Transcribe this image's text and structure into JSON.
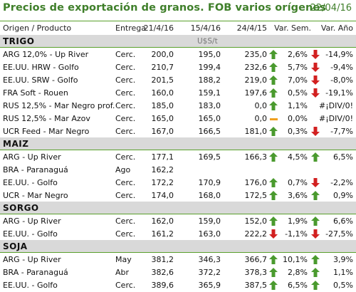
{
  "title": "Precios de exportación de granos. FOB varios orígenes",
  "date": "22/04/16",
  "headers": [
    "Origen / Producto",
    "Entrega",
    "21/4/16",
    "15/4/16",
    "24/4/15",
    "Var. Sem.",
    "Var. Año"
  ],
  "unit": "U$S/t",
  "colors": {
    "accent": "#3f7f2a",
    "up": "#4a9a2e",
    "down": "#d22020",
    "flat": "#f0a020",
    "section_bg": "#d9d9d9"
  },
  "sections": [
    {
      "name": "TRIGO",
      "rows": [
        {
          "product": "ARG 12,0% - Up River",
          "delivery": "Cerc.",
          "v1": "200,0",
          "v2": "195,0",
          "v3": "235,0",
          "t1": "up",
          "ws": "2,6%",
          "t2": "down",
          "ya": "-14,9%"
        },
        {
          "product": "EE.UU. HRW - Golfo",
          "delivery": "Cerc.",
          "v1": "210,7",
          "v2": "199,4",
          "v3": "232,6",
          "t1": "up",
          "ws": "5,7%",
          "t2": "down",
          "ya": "-9,4%"
        },
        {
          "product": "EE.UU. SRW - Golfo",
          "delivery": "Cerc.",
          "v1": "201,5",
          "v2": "188,2",
          "v3": "219,0",
          "t1": "up",
          "ws": "7,0%",
          "t2": "down",
          "ya": "-8,0%"
        },
        {
          "product": "FRA Soft - Rouen",
          "delivery": "Cerc.",
          "v1": "160,0",
          "v2": "159,1",
          "v3": "197,6",
          "t1": "up",
          "ws": "0,5%",
          "t2": "down",
          "ya": "-19,1%"
        },
        {
          "product": "RUS 12,5% - Mar Negro prof.",
          "delivery": "Cerc.",
          "v1": "185,0",
          "v2": "183,0",
          "v3": "0,0",
          "t1": "up",
          "ws": "1,1%",
          "t2": "",
          "ya": "#¡DIV/0!"
        },
        {
          "product": "RUS 12,5% - Mar Azov",
          "delivery": "Cerc.",
          "v1": "165,0",
          "v2": "165,0",
          "v3": "0,0",
          "t1": "flat",
          "ws": "0,0%",
          "t2": "",
          "ya": "#¡DIV/0!"
        },
        {
          "product": "UCR Feed - Mar Negro",
          "delivery": "Cerc.",
          "v1": "167,0",
          "v2": "166,5",
          "v3": "181,0",
          "t1": "up",
          "ws": "0,3%",
          "t2": "down",
          "ya": "-7,7%"
        }
      ]
    },
    {
      "name": "MAIZ",
      "rows": [
        {
          "product": "ARG - Up River",
          "delivery": "Cerc.",
          "v1": "177,1",
          "v2": "169,5",
          "v3": "166,3",
          "t1": "up",
          "ws": "4,5%",
          "t2": "up",
          "ya": "6,5%"
        },
        {
          "product": "BRA - Paranaguá",
          "delivery": "Ago",
          "v1": "162,2",
          "v2": "",
          "v3": "",
          "t1": "",
          "ws": "",
          "t2": "",
          "ya": ""
        },
        {
          "product": "EE.UU. - Golfo",
          "delivery": "Cerc.",
          "v1": "172,2",
          "v2": "170,9",
          "v3": "176,0",
          "t1": "up",
          "ws": "0,7%",
          "t2": "down",
          "ya": "-2,2%"
        },
        {
          "product": "UCR - Mar Negro",
          "delivery": "Cerc.",
          "v1": "174,0",
          "v2": "168,0",
          "v3": "172,5",
          "t1": "up",
          "ws": "3,6%",
          "t2": "up",
          "ya": "0,9%"
        }
      ]
    },
    {
      "name": "SORGO",
      "rows": [
        {
          "product": "ARG - Up River",
          "delivery": "Cerc.",
          "v1": "162,0",
          "v2": "159,0",
          "v3": "152,0",
          "t1": "up",
          "ws": "1,9%",
          "t2": "up",
          "ya": "6,6%"
        },
        {
          "product": "EE.UU. - Golfo",
          "delivery": "Cerc.",
          "v1": "161,2",
          "v2": "163,0",
          "v3": "222,2",
          "t1": "down",
          "ws": "-1,1%",
          "t2": "down",
          "ya": "-27,5%"
        }
      ]
    },
    {
      "name": "SOJA",
      "rows": [
        {
          "product": "ARG - Up River",
          "delivery": "May",
          "v1": "381,2",
          "v2": "346,3",
          "v3": "366,7",
          "t1": "up",
          "ws": "10,1%",
          "t2": "up",
          "ya": "3,9%"
        },
        {
          "product": "BRA - Paranaguá",
          "delivery": "Abr",
          "v1": "382,6",
          "v2": "372,2",
          "v3": "378,3",
          "t1": "up",
          "ws": "2,8%",
          "t2": "up",
          "ya": "1,1%"
        },
        {
          "product": "EE.UU. - Golfo",
          "delivery": "Cerc.",
          "v1": "389,6",
          "v2": "365,9",
          "v3": "387,5",
          "t1": "up",
          "ws": "6,5%",
          "t2": "up",
          "ya": "0,5%"
        }
      ]
    }
  ]
}
